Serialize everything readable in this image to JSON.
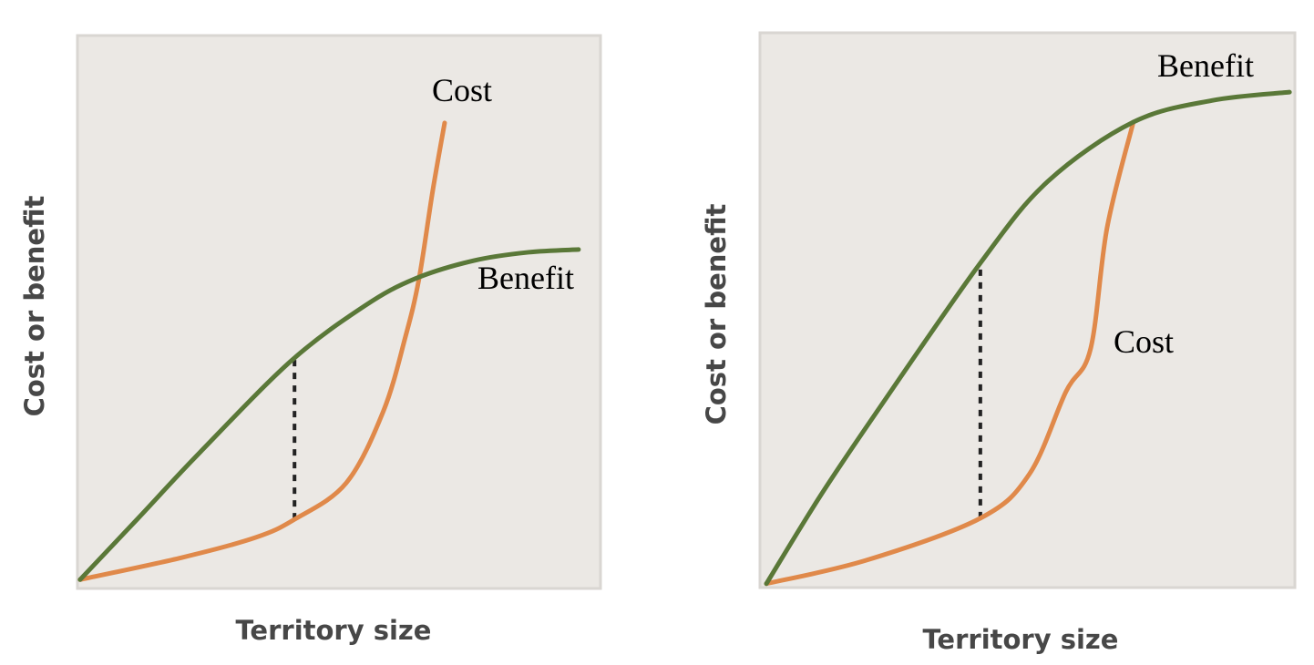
{
  "colors": {
    "panel_background": "#ebe8e4",
    "panel_border": "#d9d6d2",
    "benefit": "#5a7838",
    "cost": "#e0894a",
    "marker": "#222222"
  },
  "chart_data": [
    {
      "type": "line",
      "title": "",
      "xlabel": "Territory size",
      "ylabel": "Cost or benefit",
      "xlim": [
        0,
        100
      ],
      "ylim": [
        0,
        100
      ],
      "grid": false,
      "legend": "none",
      "series": [
        {
          "name": "Benefit",
          "color": "#5a7838",
          "points": [
            [
              0.5,
              1.6
            ],
            [
              11.3,
              12.4
            ],
            [
              23.5,
              24.7
            ],
            [
              40.9,
              41.2
            ],
            [
              54.9,
              51.1
            ],
            [
              64.5,
              56.0
            ],
            [
              75.8,
              59.3
            ],
            [
              86.2,
              60.8
            ],
            [
              95.8,
              61.3
            ]
          ]
        },
        {
          "name": "Cost",
          "color": "#e0894a",
          "points": [
            [
              0.5,
              1.6
            ],
            [
              20.0,
              5.6
            ],
            [
              34.0,
              9.2
            ],
            [
              41.5,
              12.5
            ],
            [
              51.4,
              19.1
            ],
            [
              58.5,
              32.1
            ],
            [
              62.7,
              45.5
            ],
            [
              65.3,
              56.0
            ],
            [
              67.9,
              71.8
            ],
            [
              70.2,
              84.2
            ]
          ]
        }
      ],
      "annotations": [
        {
          "type": "dotted-vertical",
          "x": 41.5,
          "y_from": 12.5,
          "y_to": 41.4
        }
      ]
    },
    {
      "type": "line",
      "title": "",
      "xlabel": "Territory size",
      "ylabel": "Cost or benefit",
      "xlim": [
        0,
        100
      ],
      "ylim": [
        0,
        100
      ],
      "grid": false,
      "legend": "none",
      "series": [
        {
          "name": "Benefit",
          "color": "#5a7838",
          "points": [
            [
              1.2,
              0.7
            ],
            [
              11.2,
              16.4
            ],
            [
              21.5,
              31.2
            ],
            [
              41.2,
              58.5
            ],
            [
              53.8,
              73.2
            ],
            [
              69.8,
              83.9
            ],
            [
              84.5,
              87.8
            ],
            [
              99.0,
              89.3
            ]
          ]
        },
        {
          "name": "Cost",
          "color": "#e0894a",
          "points": [
            [
              1.2,
              0.7
            ],
            [
              19.8,
              4.9
            ],
            [
              41.2,
              12.5
            ],
            [
              50.4,
              20.5
            ],
            [
              57.2,
              35.3
            ],
            [
              61.8,
              43.0
            ],
            [
              64.9,
              64.9
            ],
            [
              69.8,
              83.9
            ]
          ]
        }
      ],
      "annotations": [
        {
          "type": "dotted-vertical",
          "x": 41.2,
          "y_from": 12.5,
          "y_to": 58.5
        }
      ]
    }
  ]
}
